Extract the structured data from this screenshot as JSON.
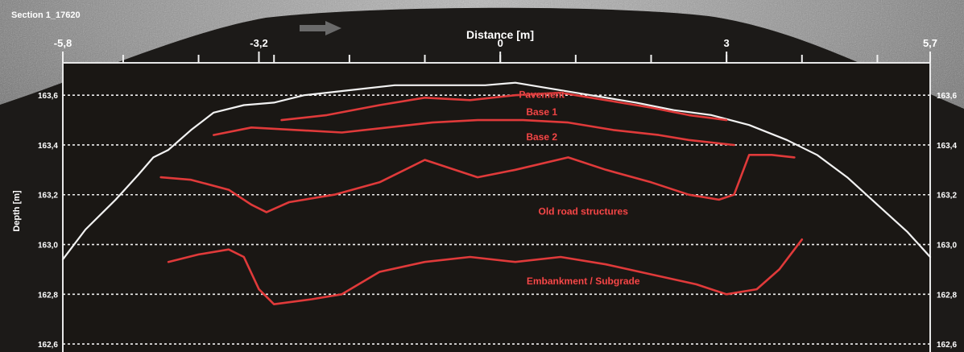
{
  "section_label": "Section 1_17620",
  "chart_data": {
    "type": "line",
    "xlabel": "Distance [m]",
    "ylabel": "Depth [m]",
    "xlim": [
      -5.8,
      5.7
    ],
    "ylim": [
      162.5,
      163.73
    ],
    "x_ticks": [
      "-5,8",
      "-3,2",
      "0",
      "3",
      "5,7"
    ],
    "x_tick_values": [
      -5.8,
      -3.2,
      0,
      3,
      5.7
    ],
    "x_minor_step": 1,
    "y_ticks": [
      "163,6",
      "163,4",
      "163,2",
      "163,0",
      "162,8",
      "162,6"
    ],
    "y_tick_values": [
      163.6,
      163.4,
      163.2,
      163.0,
      162.8,
      162.6
    ],
    "grid": "horizontal-dashed",
    "series": [
      {
        "color": "#f2f2f2",
        "x": [
          -5.8,
          -5.5,
          -5.1,
          -4.8,
          -4.6,
          -4.4,
          -4.1,
          -3.8,
          -3.4,
          -3.0,
          -2.6,
          -2.0,
          -1.4,
          -0.8,
          -0.2,
          0.2,
          0.6,
          1.2,
          1.8,
          2.3,
          2.8,
          3.3,
          3.8,
          4.2,
          4.6,
          5.0,
          5.4,
          5.7
        ],
        "y": [
          162.94,
          163.06,
          163.18,
          163.28,
          163.35,
          163.38,
          163.46,
          163.53,
          163.56,
          163.57,
          163.6,
          163.62,
          163.64,
          163.64,
          163.64,
          163.65,
          163.63,
          163.6,
          163.57,
          163.54,
          163.52,
          163.48,
          163.42,
          163.36,
          163.27,
          163.16,
          163.05,
          162.95
        ]
      },
      {
        "color": "#e03a3a",
        "x": [
          -2.9,
          -2.3,
          -1.6,
          -1.0,
          -0.4,
          0.2,
          0.8,
          1.4,
          2.0,
          2.5,
          3.0
        ],
        "y": [
          163.5,
          163.52,
          163.56,
          163.59,
          163.58,
          163.6,
          163.61,
          163.58,
          163.55,
          163.52,
          163.5
        ]
      },
      {
        "color": "#e03a3a",
        "x": [
          -3.8,
          -3.3,
          -2.7,
          -2.1,
          -1.5,
          -0.9,
          -0.3,
          0.3,
          0.9,
          1.5,
          2.1,
          2.5,
          3.1
        ],
        "y": [
          163.44,
          163.47,
          163.46,
          163.45,
          163.47,
          163.49,
          163.5,
          163.5,
          163.49,
          163.46,
          163.44,
          163.42,
          163.4
        ]
      },
      {
        "color": "#e03a3a",
        "x": [
          -4.5,
          -4.1,
          -3.6,
          -3.3,
          -3.1,
          -2.8,
          -2.2,
          -1.6,
          -1.0,
          -0.3,
          0.2,
          0.9,
          1.4,
          2.0,
          2.5,
          2.9,
          3.1,
          3.3,
          3.6,
          3.9
        ],
        "y": [
          163.27,
          163.26,
          163.22,
          163.16,
          163.13,
          163.17,
          163.2,
          163.25,
          163.34,
          163.27,
          163.3,
          163.35,
          163.3,
          163.25,
          163.2,
          163.18,
          163.2,
          163.36,
          163.36,
          163.35
        ]
      },
      {
        "color": "#e03a3a",
        "x": [
          -4.4,
          -4.0,
          -3.6,
          -3.4,
          -3.2,
          -3.0,
          -2.5,
          -2.1,
          -1.6,
          -1.0,
          -0.4,
          0.2,
          0.8,
          1.4,
          2.0,
          2.6,
          3.0,
          3.4,
          3.7,
          4.0
        ],
        "y": [
          162.93,
          162.96,
          162.98,
          162.95,
          162.82,
          162.76,
          162.78,
          162.8,
          162.89,
          162.93,
          162.95,
          162.93,
          162.95,
          162.92,
          162.88,
          162.84,
          162.8,
          162.82,
          162.9,
          163.02
        ]
      }
    ],
    "annotations": [
      {
        "text": "Pavement",
        "x": 0.55,
        "y": 163.59
      },
      {
        "text": "Base 1",
        "x": 0.55,
        "y": 163.52
      },
      {
        "text": "Base 2",
        "x": 0.55,
        "y": 163.42
      },
      {
        "text": "Old road structures",
        "x": 1.1,
        "y": 163.12
      },
      {
        "text": "Embankment / Subgrade",
        "x": 1.1,
        "y": 162.84
      }
    ]
  }
}
